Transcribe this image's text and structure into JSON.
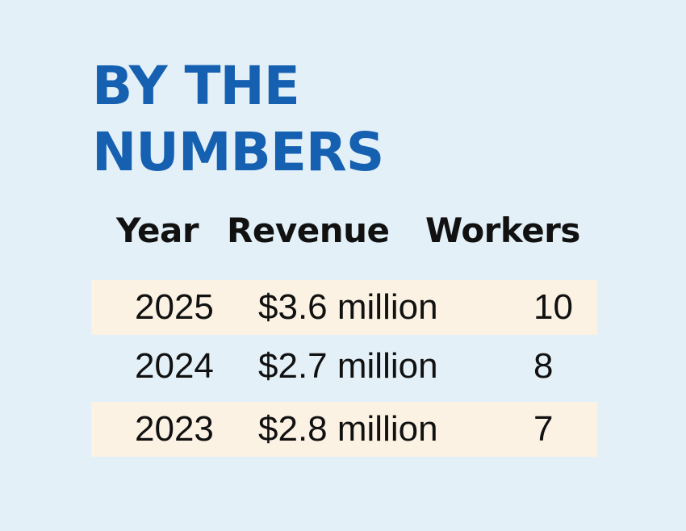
{
  "title": {
    "line1": "BY THE",
    "line2": "NUMBERS"
  },
  "table": {
    "headers": {
      "year": "Year",
      "revenue": "Revenue",
      "workers": "Workers"
    },
    "rows": [
      {
        "year": "2025",
        "revenue": "$3.6 million",
        "workers": "10"
      },
      {
        "year": "2024",
        "revenue": "$2.7 million",
        "workers": "8"
      },
      {
        "year": "2023",
        "revenue": "$2.8 million",
        "workers": "7"
      }
    ]
  },
  "colors": {
    "background": "#e3f0f8",
    "title": "#1560b0",
    "row_shade": "#fbf2e3",
    "text": "#111111"
  }
}
